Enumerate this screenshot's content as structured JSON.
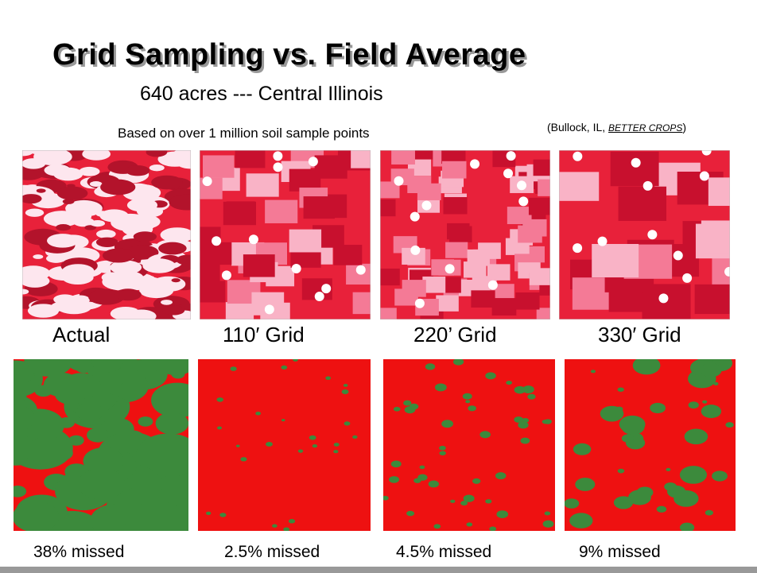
{
  "title": "Grid Sampling vs. Field Average",
  "subtitle": "640 acres --- Central Illinois",
  "note": "Based on over 1 million soil sample points",
  "source": {
    "prefix": "(Bullock, IL, ",
    "publication": "BETTER CROPS",
    "suffix": ")"
  },
  "maps": [
    {
      "label": "Actual",
      "missed": "38% missed"
    },
    {
      "label": "110′ Grid",
      "missed": "2.5% missed"
    },
    {
      "label": "220’ Grid",
      "missed": "4.5% missed"
    },
    {
      "label": "330′ Grid",
      "missed": "9% missed"
    }
  ]
}
